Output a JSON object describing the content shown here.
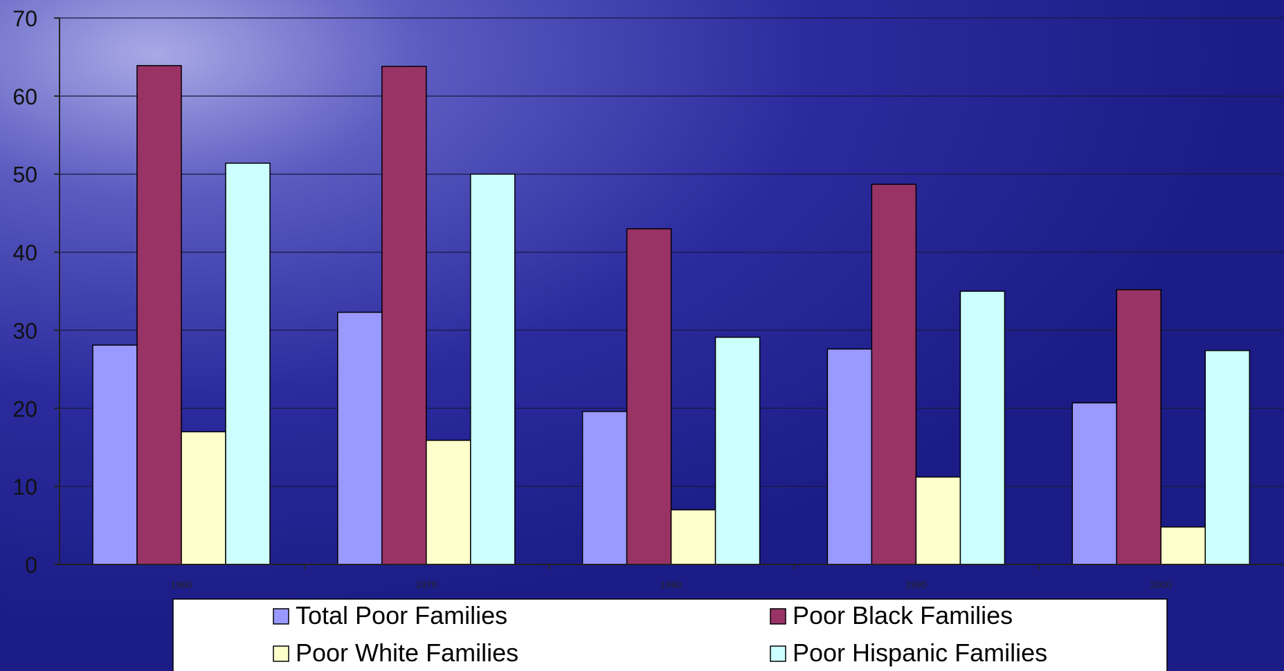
{
  "chart_data": {
    "type": "bar",
    "title": "",
    "xlabel": "",
    "ylabel": "",
    "categories": [
      "1960",
      "1970",
      "1980",
      "1990",
      "2000"
    ],
    "ylim": [
      0,
      70
    ],
    "yticks": [
      0,
      10,
      20,
      30,
      40,
      50,
      60,
      70
    ],
    "grid": true,
    "legend_position": "bottom",
    "series": [
      {
        "name": "Total Poor Families",
        "color": "#9999ff",
        "values": [
          28.1,
          32.3,
          19.6,
          27.6,
          20.7
        ]
      },
      {
        "name": "Poor Black Families",
        "color": "#993366",
        "values": [
          63.9,
          63.8,
          43.0,
          48.7,
          35.2
        ]
      },
      {
        "name": "Poor White Families",
        "color": "#ffffcc",
        "values": [
          17.0,
          15.9,
          7.0,
          11.2,
          4.8
        ]
      },
      {
        "name": "Poor Hispanic Families",
        "color": "#ccffff",
        "values": [
          51.4,
          50.0,
          29.1,
          35.0,
          27.4
        ]
      }
    ]
  },
  "style": {
    "background_dark": "#1f1f8f",
    "background_light": "#8c8cd6",
    "gridline_color": "#1a1a40",
    "legend_background": "#ffffff"
  }
}
